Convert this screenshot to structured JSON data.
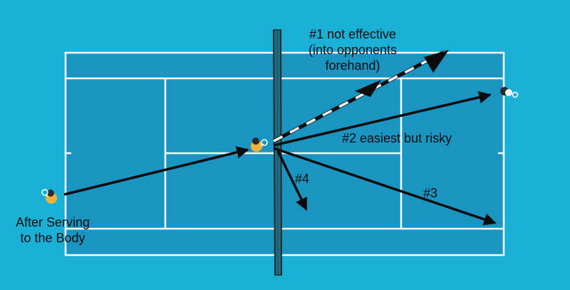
{
  "labels": {
    "option1_line1": "#1 not effective",
    "option1_line2": "(into opponents",
    "option1_line3": "forehand)",
    "option2": "#2 easiest but risky",
    "option3": "#3",
    "option4": "#4",
    "serve_line1": "After Serving",
    "serve_line2": "to the Body"
  },
  "colors": {
    "surround": "#1ab0d6",
    "court": "#1a95c2",
    "lines": "#ffffff",
    "arrows": "#0b0b0b",
    "net": "#2a2a2a"
  }
}
